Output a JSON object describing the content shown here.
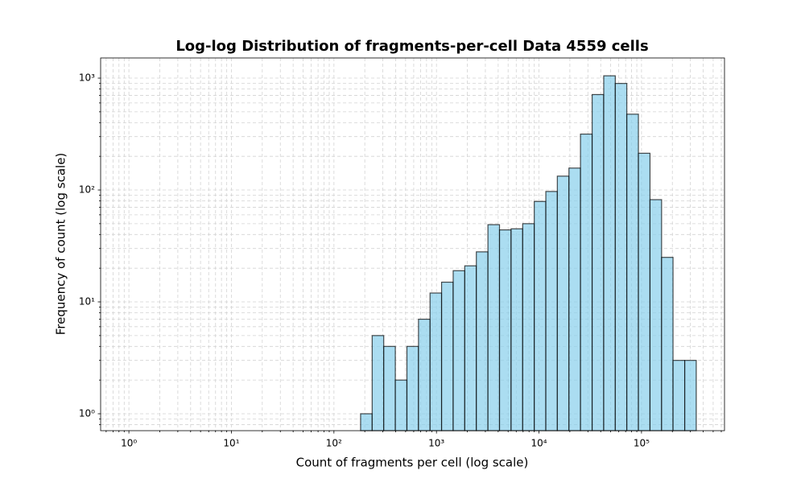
{
  "chart_data": {
    "type": "histogram",
    "title": "Log-log Distribution of fragments-per-cell Data 4559 cells",
    "xlabel": "Count of fragments per cell (log scale)",
    "ylabel": "Frequency of count (log scale)",
    "bins": [
      182,
      236,
      306,
      397,
      515,
      668,
      866,
      1122,
      1456,
      1888,
      2449,
      3177,
      4121,
      5345,
      6934,
      8994,
      11660,
      15100,
      19600,
      25400,
      33000,
      42800,
      55500,
      71900,
      93300,
      121000,
      157000,
      203000,
      264000,
      342000
    ],
    "values": [
      1,
      5,
      4,
      2,
      4,
      7,
      12,
      15,
      19,
      21,
      28,
      49,
      44,
      45,
      50,
      79,
      97,
      133,
      157,
      316,
      713,
      1049,
      896,
      476,
      213,
      82,
      25,
      3,
      3
    ],
    "color": "#87ceeb",
    "edgecolor": "#000000",
    "xscale": "log",
    "yscale": "log",
    "xlim": [
      0.53,
      645000
    ],
    "ylim": [
      0.706,
      1514
    ],
    "xticks": [
      {
        "value": 1,
        "label": "10⁰"
      },
      {
        "value": 10,
        "label": "10¹"
      },
      {
        "value": 100,
        "label": "10²"
      },
      {
        "value": 1000,
        "label": "10³"
      },
      {
        "value": 10000,
        "label": "10⁴"
      },
      {
        "value": 100000,
        "label": "10⁵"
      }
    ],
    "yticks": [
      {
        "value": 1,
        "label": "10⁰"
      },
      {
        "value": 10,
        "label": "10¹"
      },
      {
        "value": 100,
        "label": "10²"
      },
      {
        "value": 1000,
        "label": "10³"
      }
    ],
    "xminorticks": [
      0.6,
      0.7,
      0.8,
      0.9,
      2,
      3,
      4,
      5,
      6,
      7,
      8,
      9,
      20,
      30,
      40,
      50,
      60,
      70,
      80,
      90,
      200,
      300,
      400,
      500,
      600,
      700,
      800,
      900,
      2000,
      3000,
      4000,
      5000,
      6000,
      7000,
      8000,
      9000,
      20000,
      30000,
      40000,
      50000,
      60000,
      70000,
      80000,
      90000,
      200000,
      300000,
      400000,
      500000,
      600000
    ],
    "yminorticks": [
      0.8,
      0.9,
      2,
      3,
      4,
      5,
      6,
      7,
      8,
      9,
      20,
      30,
      40,
      50,
      60,
      70,
      80,
      90,
      200,
      300,
      400,
      500,
      600,
      700,
      800,
      900
    ],
    "grid": true
  }
}
